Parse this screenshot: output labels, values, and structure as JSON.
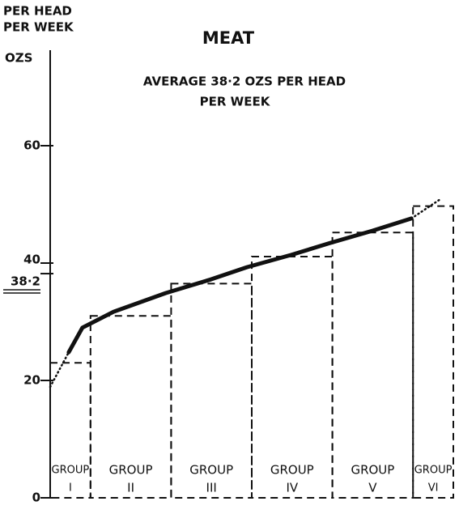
{
  "chart_data": {
    "type": "histogram",
    "title": "MEAT",
    "unit_label": [
      "PER HEAD",
      "PER WEEK"
    ],
    "ylabel": "OZS",
    "annotation": [
      "AVERAGE  38·2  OZS  PER  HEAD",
      "PER  WEEK"
    ],
    "categories": [
      [
        "GROUP",
        "I"
      ],
      [
        "GROUP",
        "II"
      ],
      [
        "GROUP",
        "III"
      ],
      [
        "GROUP",
        "IV"
      ],
      [
        "GROUP",
        "V"
      ],
      [
        "GROUP",
        "VI"
      ]
    ],
    "bins": [
      0,
      10,
      30,
      50,
      70,
      90,
      100
    ],
    "values": [
      23,
      31,
      36.5,
      41.1,
      45.2,
      49.7
    ],
    "xlim": [
      0,
      100
    ],
    "ylim": [
      0,
      60
    ],
    "yticks": [
      0,
      20,
      {
        "value": 38.2,
        "label": "38·2"
      },
      40,
      60
    ],
    "color": "#111111",
    "curve": {
      "x": [
        0,
        4.6,
        8.0,
        15.7,
        28.7,
        39.8,
        48.8,
        59.8,
        69.3,
        79.9,
        89.6,
        97.0
      ],
      "values": [
        18.9,
        24.8,
        29.0,
        31.7,
        34.9,
        37.2,
        39.3,
        41.4,
        43.4,
        45.5,
        47.6,
        51.0
      ],
      "dotted_ends": true
    }
  }
}
